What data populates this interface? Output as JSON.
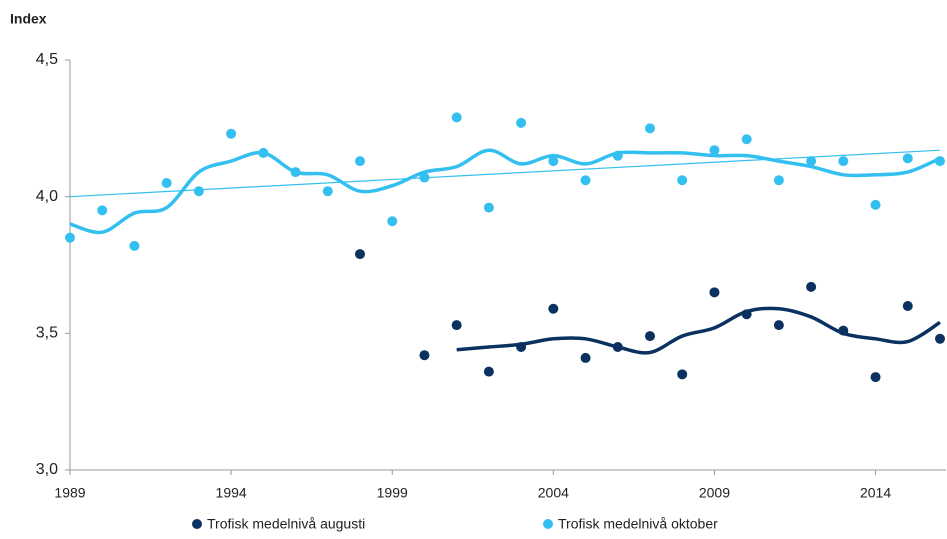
{
  "chart_data": {
    "type": "scatter",
    "y_label": "Index",
    "xlim": [
      1989,
      2016
    ],
    "ylim": [
      3.0,
      4.5
    ],
    "xticks": [
      1989,
      1994,
      1999,
      2004,
      2009,
      2014
    ],
    "yticks": [
      {
        "value": 3.0,
        "label": "3,0"
      },
      {
        "value": 3.5,
        "label": "3,5"
      },
      {
        "value": 4.0,
        "label": "4,0"
      },
      {
        "value": 4.5,
        "label": "4,5"
      }
    ],
    "grid": false,
    "legend": "bottom",
    "series": [
      {
        "name": "Trofisk medelnivå augusti",
        "color": "#0a3160",
        "x": [
          1998,
          2000,
          2001,
          2002,
          2003,
          2004,
          2005,
          2006,
          2007,
          2008,
          2009,
          2010,
          2011,
          2012,
          2013,
          2014,
          2015,
          2016
        ],
        "values": [
          3.79,
          3.42,
          3.53,
          3.36,
          3.45,
          3.59,
          3.41,
          3.45,
          3.49,
          3.35,
          3.65,
          3.57,
          3.53,
          3.67,
          3.51,
          3.34,
          3.6,
          3.48
        ],
        "smooth": {
          "x": [
            2001,
            2002,
            2003,
            2004,
            2005,
            2006,
            2007,
            2008,
            2009,
            2010,
            2011,
            2012,
            2013,
            2014,
            2015,
            2016
          ],
          "values": [
            3.44,
            3.45,
            3.46,
            3.48,
            3.48,
            3.45,
            3.43,
            3.49,
            3.52,
            3.58,
            3.59,
            3.56,
            3.5,
            3.48,
            3.47,
            3.54
          ]
        }
      },
      {
        "name": "Trofisk medelnivå oktober",
        "color": "#33bff0",
        "x": [
          1989,
          1990,
          1991,
          1992,
          1993,
          1994,
          1995,
          1996,
          1997,
          1998,
          1999,
          2000,
          2001,
          2002,
          2003,
          2004,
          2005,
          2006,
          2007,
          2008,
          2009,
          2010,
          2011,
          2012,
          2013,
          2014,
          2015,
          2016
        ],
        "values": [
          3.85,
          3.95,
          3.82,
          4.05,
          4.02,
          4.23,
          4.16,
          4.09,
          4.02,
          4.13,
          3.91,
          4.07,
          4.29,
          3.96,
          4.27,
          4.13,
          4.06,
          4.15,
          4.25,
          4.06,
          4.17,
          4.21,
          4.06,
          4.13,
          4.13,
          3.97,
          4.14,
          4.13
        ],
        "smooth": {
          "x": [
            1989,
            1990,
            1991,
            1992,
            1993,
            1994,
            1995,
            1996,
            1997,
            1998,
            1999,
            2000,
            2001,
            2002,
            2003,
            2004,
            2005,
            2006,
            2007,
            2008,
            2009,
            2010,
            2011,
            2012,
            2013,
            2014,
            2015,
            2016
          ],
          "values": [
            3.9,
            3.87,
            3.94,
            3.96,
            4.09,
            4.13,
            4.16,
            4.09,
            4.08,
            4.02,
            4.04,
            4.09,
            4.11,
            4.17,
            4.12,
            4.15,
            4.12,
            4.16,
            4.16,
            4.16,
            4.15,
            4.15,
            4.13,
            4.11,
            4.08,
            4.08,
            4.09,
            4.14
          ]
        },
        "trend": {
          "x": [
            1989,
            2016
          ],
          "values": [
            4.0,
            4.17
          ]
        }
      }
    ]
  }
}
